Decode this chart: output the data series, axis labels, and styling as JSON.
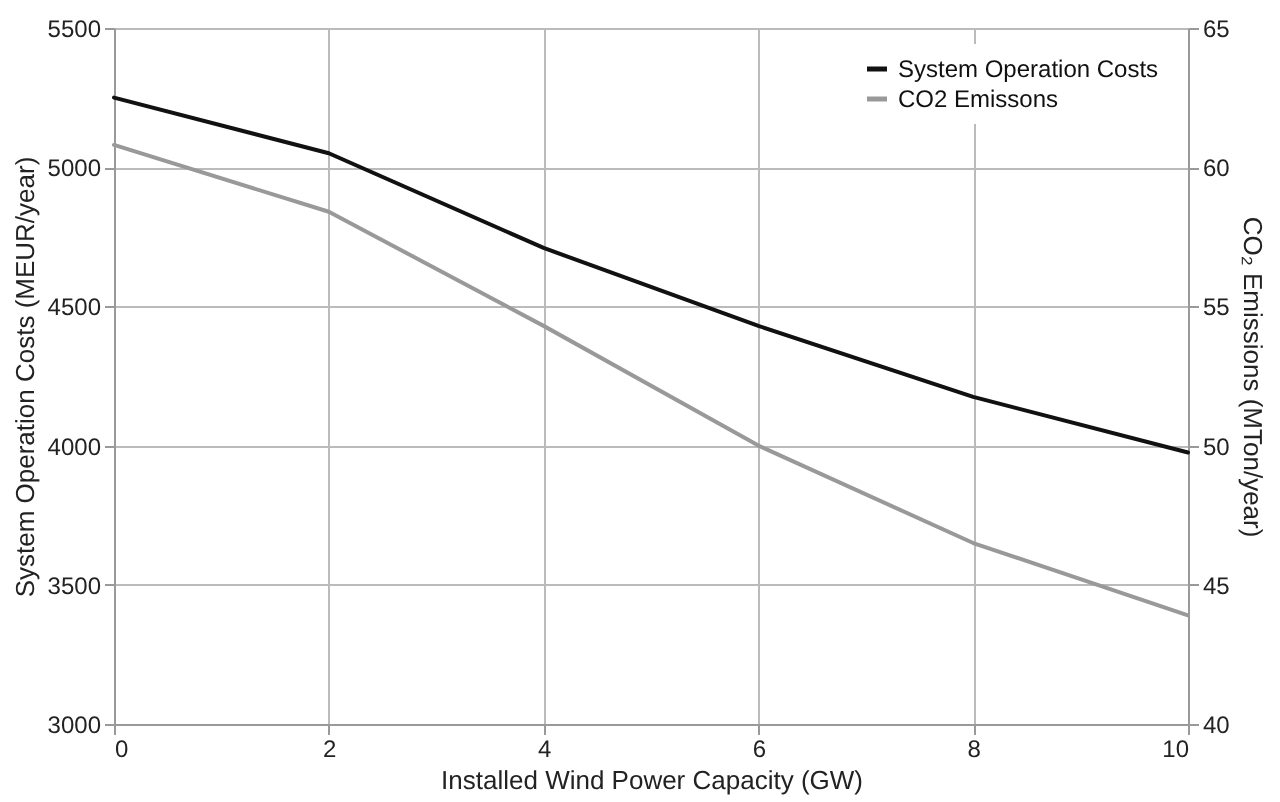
{
  "chart_data": {
    "type": "line",
    "xlabel": "Installed Wind Power Capacity (GW)",
    "ylabel": "System Operation Costs (MEUR/year)",
    "y2label": "CO₂ Emissions (MTon/year)",
    "x": [
      0,
      2,
      4,
      6,
      8,
      10
    ],
    "series": [
      {
        "name": "System Operation Costs",
        "color": "#111111",
        "values": [
          5250,
          5050,
          4710,
          4430,
          4175,
          3975
        ]
      },
      {
        "name": "CO2 Emissons",
        "color": "#999999",
        "axis": "y2",
        "values": [
          60.8,
          58.4,
          54.3,
          50.0,
          46.5,
          43.9
        ]
      }
    ],
    "xlim": [
      0,
      10
    ],
    "xticks": [
      0,
      2,
      4,
      6,
      8,
      10
    ],
    "ylim": [
      3000,
      5500
    ],
    "yticks": [
      3000,
      3500,
      4000,
      4500,
      5000,
      5500
    ],
    "y2lim": [
      40,
      65
    ],
    "y2ticks": [
      40,
      45,
      50,
      55,
      60,
      65
    ],
    "grid": true,
    "legend": "top right",
    "marker": "none",
    "line_style": "solid"
  }
}
